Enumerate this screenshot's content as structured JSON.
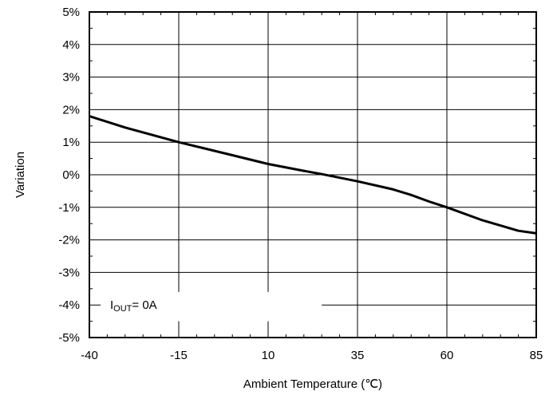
{
  "chart_data": {
    "type": "line",
    "xlabel": "Ambient Temperature (℃)",
    "ylabel": "Variation",
    "xlim": [
      -40,
      85
    ],
    "ylim": [
      -5,
      5
    ],
    "xticks": [
      -40,
      -15,
      10,
      35,
      60,
      85
    ],
    "yticks": [
      -5,
      -4,
      -3,
      -2,
      -1,
      0,
      1,
      2,
      3,
      4,
      5
    ],
    "x_tick_labels": [
      "-40",
      "-15",
      "10",
      "35",
      "60",
      "85"
    ],
    "y_tick_labels": [
      "-5%",
      "-4%",
      "-3%",
      "-2%",
      "-1%",
      "0%",
      "1%",
      "2%",
      "3%",
      "4%",
      "5%"
    ],
    "grid": true,
    "annotation": {
      "prefix": "I",
      "subscript": "OUT",
      "suffix": "= 0A"
    },
    "series": [
      {
        "x": [
          -40,
          -30,
          -15,
          0,
          10,
          20,
          25,
          35,
          45,
          50,
          55,
          60,
          70,
          80,
          85
        ],
        "y": [
          1.8,
          1.45,
          1.0,
          0.6,
          0.33,
          0.12,
          0.02,
          -0.2,
          -0.45,
          -0.62,
          -0.82,
          -1.0,
          -1.4,
          -1.72,
          -1.8
        ]
      }
    ],
    "line_color": "#000000"
  }
}
